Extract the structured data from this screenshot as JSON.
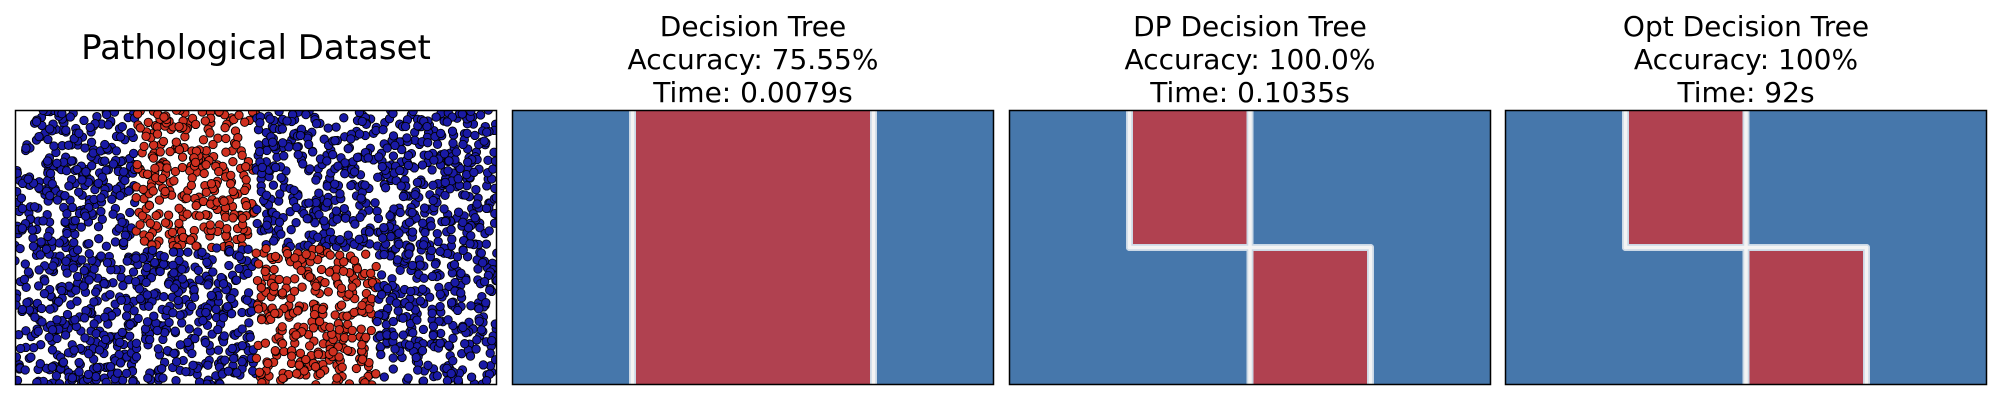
{
  "chart_data": [
    {
      "type": "scatter",
      "title": "Pathological Dataset",
      "xlim": [
        0,
        1
      ],
      "ylim": [
        0,
        1
      ],
      "grid": false,
      "axes_ticks": false,
      "classes": [
        {
          "name": "",
          "color": "#1a1aa6",
          "label": 0
        },
        {
          "name": "",
          "color": "#d03020",
          "label": 1
        }
      ],
      "class_regions": [
        {
          "label": 0,
          "x": [
            0,
            0.25
          ],
          "y": [
            0,
            1
          ]
        },
        {
          "label": 1,
          "x": [
            0.25,
            0.5
          ],
          "y": [
            0.5,
            1
          ]
        },
        {
          "label": 0,
          "x": [
            0.25,
            0.5
          ],
          "y": [
            0,
            0.5
          ]
        },
        {
          "label": 0,
          "x": [
            0.5,
            0.75
          ],
          "y": [
            0.5,
            1
          ]
        },
        {
          "label": 1,
          "x": [
            0.5,
            0.75
          ],
          "y": [
            0,
            0.5
          ]
        },
        {
          "label": 0,
          "x": [
            0.75,
            1
          ],
          "y": [
            0,
            1
          ]
        }
      ]
    },
    {
      "type": "heatmap",
      "title_lines": [
        "Decision Tree",
        "Accuracy: 75.55%",
        "Time: 0.0079s"
      ],
      "xlim": [
        0,
        1
      ],
      "ylim": [
        0,
        1
      ],
      "decision_regions": [
        {
          "label": 0,
          "x": [
            0,
            0.25
          ],
          "y": [
            0,
            1
          ]
        },
        {
          "label": 1,
          "x": [
            0.25,
            0.75
          ],
          "y": [
            0,
            1
          ]
        },
        {
          "label": 0,
          "x": [
            0.75,
            1
          ],
          "y": [
            0,
            1
          ]
        }
      ]
    },
    {
      "type": "heatmap",
      "title_lines": [
        "DP Decision Tree",
        "Accuracy: 100.0%",
        "Time: 0.1035s"
      ],
      "xlim": [
        0,
        1
      ],
      "ylim": [
        0,
        1
      ],
      "decision_regions": [
        {
          "label": 0,
          "x": [
            0,
            0.25
          ],
          "y": [
            0,
            1
          ]
        },
        {
          "label": 1,
          "x": [
            0.25,
            0.5
          ],
          "y": [
            0.5,
            1
          ]
        },
        {
          "label": 0,
          "x": [
            0.25,
            0.5
          ],
          "y": [
            0,
            0.5
          ]
        },
        {
          "label": 0,
          "x": [
            0.5,
            0.75
          ],
          "y": [
            0.5,
            1
          ]
        },
        {
          "label": 1,
          "x": [
            0.5,
            0.75
          ],
          "y": [
            0,
            0.5
          ]
        },
        {
          "label": 0,
          "x": [
            0.75,
            1
          ],
          "y": [
            0,
            1
          ]
        }
      ]
    },
    {
      "type": "heatmap",
      "title_lines": [
        "Opt Decision Tree",
        "Accuracy: 100%",
        "Time: 92s"
      ],
      "xlim": [
        0,
        1
      ],
      "ylim": [
        0,
        1
      ],
      "decision_regions": [
        {
          "label": 0,
          "x": [
            0,
            0.25
          ],
          "y": [
            0,
            1
          ]
        },
        {
          "label": 1,
          "x": [
            0.25,
            0.5
          ],
          "y": [
            0.5,
            1
          ]
        },
        {
          "label": 0,
          "x": [
            0.25,
            0.5
          ],
          "y": [
            0,
            0.5
          ]
        },
        {
          "label": 0,
          "x": [
            0.5,
            0.75
          ],
          "y": [
            0.5,
            1
          ]
        },
        {
          "label": 1,
          "x": [
            0.5,
            0.75
          ],
          "y": [
            0,
            0.5
          ]
        },
        {
          "label": 0,
          "x": [
            0.75,
            1
          ],
          "y": [
            0,
            1
          ]
        }
      ]
    }
  ],
  "colors": {
    "region_class0": "#4677ab",
    "region_class1": "#b04150",
    "boundary": "#f4f4f4",
    "axes_frame": "#000000"
  }
}
